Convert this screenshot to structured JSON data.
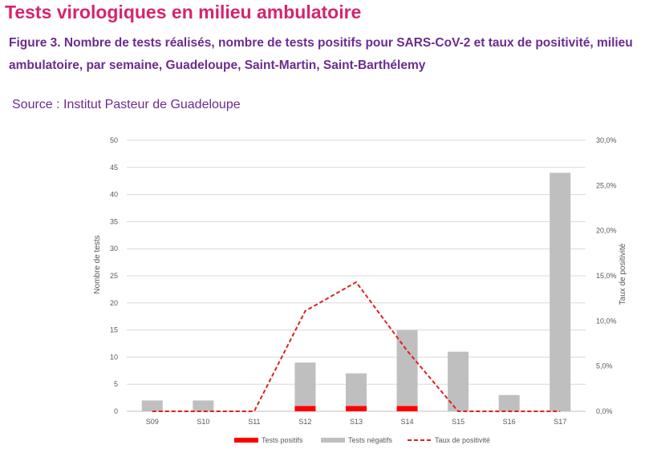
{
  "page": {
    "title": "Tests virologiques en milieu ambulatoire",
    "caption": "Figure 3. Nombre de tests réalisés, nombre de tests positifs pour SARS-CoV-2 et taux de positivité, milieu ambulatoire, par semaine, Guadeloupe, Saint-Martin, Saint-Barthélemy",
    "source": "Source : Institut Pasteur de Guadeloupe"
  },
  "colors": {
    "title": "#d6246e",
    "caption": "#6b2c8f",
    "positive": "#ff0000",
    "negative": "#bfbfbf",
    "rate_line": "#e02020",
    "gridline": "#d9d9d9"
  },
  "chart_data": {
    "type": "bar",
    "categories": [
      "S09",
      "S10",
      "S11",
      "S12",
      "S13",
      "S14",
      "S15",
      "S16",
      "S17"
    ],
    "series": [
      {
        "name": "Tests positifs",
        "kind": "bar",
        "stacked": true,
        "axis": "left",
        "values": [
          0,
          0,
          0,
          1,
          1,
          1,
          0,
          0,
          0
        ]
      },
      {
        "name": "Tests négatifs",
        "kind": "bar",
        "stacked": true,
        "axis": "left",
        "values": [
          2,
          2,
          0,
          8,
          6,
          14,
          11,
          3,
          44
        ]
      },
      {
        "name": "Taux de positivité",
        "kind": "line",
        "style": "dashed",
        "axis": "right",
        "values": [
          0,
          0,
          0,
          11.1,
          14.3,
          6.7,
          0,
          0,
          0
        ]
      }
    ],
    "ylabel": "Nombre de tests",
    "y2label": "Taux de positivité",
    "ylim": [
      0,
      50
    ],
    "y2lim": [
      0,
      30
    ],
    "yticks": [
      "0",
      "5",
      "10",
      "15",
      "20",
      "25",
      "30",
      "35",
      "40",
      "45",
      "50"
    ],
    "y2ticks": [
      "0,0%",
      "5,0%",
      "10,0%",
      "15,0%",
      "20,0%",
      "25,0%",
      "30,0%"
    ],
    "grid": true,
    "legend_position": "bottom"
  }
}
